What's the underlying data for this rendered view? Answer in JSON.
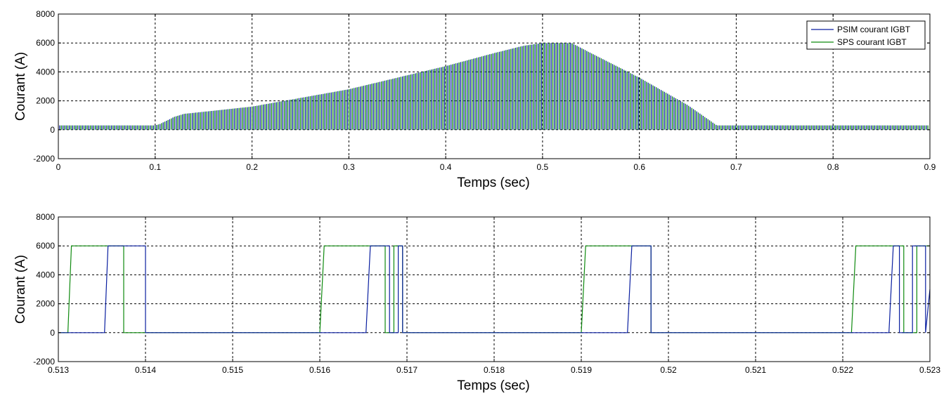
{
  "chart_data": [
    {
      "type": "line",
      "xlabel": "Temps (sec)",
      "ylabel": "Courant (A)",
      "xlim": [
        0,
        0.9
      ],
      "ylim": [
        -2000,
        8000
      ],
      "xticks": [
        "0",
        "0.1",
        "0.2",
        "0.3",
        "0.4",
        "0.5",
        "0.6",
        "0.7",
        "0.8",
        "0.9"
      ],
      "yticks": [
        "-2000",
        "0",
        "2000",
        "4000",
        "6000",
        "8000"
      ],
      "grid": true,
      "legend": {
        "position": "top-right",
        "entries": [
          "PSIM courant IGBT",
          "SPS courant IGBT"
        ]
      },
      "series": [
        {
          "name": "PSIM courant IGBT",
          "color": "#0a1fa0",
          "envelope_x": [
            0,
            0.1,
            0.105,
            0.12,
            0.13,
            0.2,
            0.3,
            0.4,
            0.45,
            0.48,
            0.5,
            0.53,
            0.55,
            0.6,
            0.65,
            0.68,
            0.7,
            0.8,
            0.9
          ],
          "envelope_y": [
            300,
            300,
            400,
            900,
            1100,
            1600,
            2800,
            4400,
            5300,
            5800,
            6000,
            6000,
            5300,
            3600,
            1700,
            300,
            300,
            300,
            300
          ]
        },
        {
          "name": "SPS courant IGBT",
          "color": "#0f8a0f",
          "envelope_x": [
            0,
            0.1,
            0.105,
            0.12,
            0.13,
            0.2,
            0.3,
            0.4,
            0.45,
            0.48,
            0.5,
            0.53,
            0.55,
            0.6,
            0.65,
            0.68,
            0.7,
            0.8,
            0.9
          ],
          "envelope_y": [
            300,
            300,
            400,
            900,
            1100,
            1600,
            2800,
            4400,
            5300,
            5800,
            6000,
            6000,
            5300,
            3600,
            1700,
            300,
            300,
            300,
            300
          ]
        }
      ]
    },
    {
      "type": "line",
      "xlabel": "Temps (sec)",
      "ylabel": "Courant (A)",
      "xlim": [
        0.513,
        0.523
      ],
      "ylim": [
        -2000,
        8000
      ],
      "xticks": [
        "0.513",
        "0.514",
        "0.515",
        "0.516",
        "0.517",
        "0.518",
        "0.519",
        "0.52",
        "0.521",
        "0.522",
        "0.523"
      ],
      "yticks": [
        "-2000",
        "0",
        "2000",
        "4000",
        "6000",
        "8000"
      ],
      "grid": true,
      "series": [
        {
          "name": "PSIM courant IGBT",
          "color": "#0a1fa0",
          "x": [
            0.513,
            0.51353,
            0.51357,
            0.514,
            0.514,
            0.51451,
            0.51451,
            0.51653,
            0.51658,
            0.5168,
            0.5168,
            0.5169,
            0.5169,
            0.51695,
            0.51695,
            0.5175,
            0.5175,
            0.51953,
            0.51958,
            0.5198,
            0.5198,
            0.5205,
            0.5205,
            0.52253,
            0.52258,
            0.52265,
            0.52265,
            0.5228,
            0.5228,
            0.52295,
            0.52295,
            0.523
          ],
          "y": [
            0,
            0,
            6000,
            6000,
            0,
            0,
            0,
            0,
            6000,
            6000,
            0,
            0,
            6000,
            6000,
            0,
            0,
            0,
            0,
            6000,
            6000,
            0,
            0,
            0,
            0,
            6000,
            6000,
            0,
            0,
            6000,
            6000,
            0,
            3000
          ]
        },
        {
          "name": "SPS courant IGBT",
          "color": "#0f8a0f",
          "x": [
            0.513,
            0.51311,
            0.51315,
            0.51375,
            0.51375,
            0.5138,
            0.5138,
            0.516,
            0.51605,
            0.51675,
            0.51675,
            0.51685,
            0.51685,
            0.51695,
            0.51695,
            0.519,
            0.51905,
            0.5198,
            0.5198,
            0.5221,
            0.52215,
            0.5227,
            0.5227,
            0.52285,
            0.52285,
            0.523
          ],
          "y": [
            0,
            0,
            6000,
            6000,
            0,
            0,
            0,
            0,
            6000,
            6000,
            0,
            0,
            6000,
            6000,
            0,
            0,
            6000,
            6000,
            0,
            0,
            6000,
            6000,
            0,
            0,
            6000,
            6000
          ]
        }
      ]
    }
  ]
}
